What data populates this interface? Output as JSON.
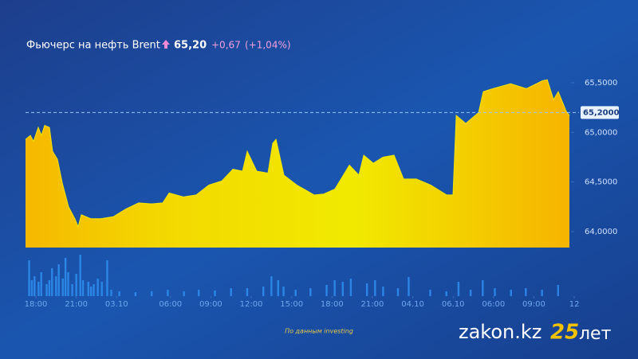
{
  "chart_data": {
    "type": "area",
    "title": "Фьючерс на нефть Brent",
    "last_price": {
      "value": 65.2,
      "label": "65,20"
    },
    "change": {
      "value": 0.67,
      "label": "+0,67"
    },
    "change_pct": {
      "value": 1.04,
      "label": "(+1,04%)"
    },
    "current": {
      "value": 65.2,
      "label": "65,2000"
    },
    "source": "По данным investing",
    "xlim": [
      -0.77,
      39.64
    ],
    "ylim": [
      63.84,
      65.62
    ],
    "xticks": [
      {
        "value": 0,
        "label": "18:00"
      },
      {
        "value": 3,
        "label": "21:00"
      },
      {
        "value": 6,
        "label": "03.10"
      },
      {
        "value": 10,
        "label": "06:00"
      },
      {
        "value": 13,
        "label": "09:00"
      },
      {
        "value": 16,
        "label": "12:00"
      },
      {
        "value": 19,
        "label": "15:00"
      },
      {
        "value": 22,
        "label": "18:00"
      },
      {
        "value": 25,
        "label": "21:00"
      },
      {
        "value": 28,
        "label": "04.10"
      },
      {
        "value": 31,
        "label": "06.10"
      },
      {
        "value": 34,
        "label": "06:00"
      },
      {
        "value": 37,
        "label": "09:00"
      },
      {
        "value": 40,
        "label": "12"
      }
    ],
    "yticks": [
      {
        "value": 64,
        "label": "64,0000"
      },
      {
        "value": 64.5,
        "label": "64,5000"
      },
      {
        "value": 65,
        "label": "65,0000"
      },
      {
        "value": 65.5,
        "label": "65,5000"
      }
    ],
    "series": [
      {
        "color": "#f2e400",
        "x": [
          -0.77,
          -0.41,
          -0.18,
          0.18,
          0.41,
          0.65,
          1.01,
          1.24,
          1.6,
          1.96,
          2.43,
          2.9,
          3.14,
          3.38,
          4.09,
          4.8,
          5.75,
          6.7,
          7.64,
          8.59,
          9.42,
          9.9,
          10.96,
          11.91,
          12.86,
          13.81,
          14.64,
          15.35,
          15.7,
          16.41,
          17.24,
          17.6,
          17.84,
          18.43,
          19.38,
          20.68,
          21.39,
          22.22,
          23.29,
          24.0,
          24.36,
          25.07,
          25.78,
          26.61,
          27.32,
          28.27,
          29.33,
          30.52,
          30.99,
          31.23,
          31.94,
          32.89,
          33.24,
          33.96,
          35.26,
          36.44,
          37.63,
          37.99,
          38.46,
          38.81,
          39.41,
          39.64
        ],
        "values": [
          64.93,
          64.97,
          64.91,
          65.05,
          64.97,
          65.07,
          65.05,
          64.81,
          64.73,
          64.49,
          64.25,
          64.13,
          64.05,
          64.17,
          64.13,
          64.13,
          64.15,
          64.23,
          64.29,
          64.28,
          64.29,
          64.39,
          64.35,
          64.37,
          64.47,
          64.51,
          64.63,
          64.61,
          64.81,
          64.61,
          64.59,
          64.89,
          64.93,
          64.57,
          64.47,
          64.37,
          64.38,
          64.43,
          64.67,
          64.57,
          64.77,
          64.69,
          64.75,
          64.77,
          64.53,
          64.53,
          64.47,
          64.37,
          64.37,
          65.17,
          65.09,
          65.2,
          65.41,
          65.44,
          65.49,
          65.44,
          65.52,
          65.53,
          65.33,
          65.41,
          65.21,
          65.17
        ]
      }
    ],
    "volume": {
      "color": "#2f8ff0",
      "vlim": [
        0,
        60
      ],
      "x": [
        -0.5,
        -0.3,
        -0.1,
        0.2,
        0.4,
        0.8,
        1.0,
        1.2,
        1.5,
        1.7,
        2.0,
        2.2,
        2.4,
        2.7,
        3.0,
        3.3,
        3.5,
        3.9,
        4.1,
        4.3,
        4.6,
        4.9,
        5.3,
        5.6,
        6.2,
        7.4,
        8.6,
        9.8,
        11.0,
        12.1,
        13.3,
        14.5,
        15.7,
        16.9,
        17.5,
        18.0,
        18.4,
        19.3,
        20.4,
        21.6,
        22.2,
        22.8,
        23.4,
        24.6,
        25.2,
        25.8,
        26.9,
        27.7,
        29.3,
        30.5,
        31.4,
        32.3,
        33.2,
        34.1,
        35.3,
        36.4,
        37.6,
        38.8
      ],
      "values": [
        45,
        20,
        25,
        18,
        30,
        15,
        20,
        35,
        25,
        40,
        22,
        48,
        30,
        15,
        28,
        52,
        20,
        18,
        12,
        15,
        22,
        18,
        45,
        8,
        6,
        5,
        6,
        8,
        6,
        8,
        7,
        10,
        10,
        12,
        25,
        20,
        12,
        8,
        10,
        14,
        20,
        18,
        22,
        16,
        20,
        12,
        10,
        24,
        8,
        6,
        18,
        8,
        20,
        10,
        8,
        10,
        8,
        14
      ]
    }
  },
  "logo": {
    "brand": "zakon.kz",
    "anniversary": "25",
    "suffix": "лет"
  }
}
